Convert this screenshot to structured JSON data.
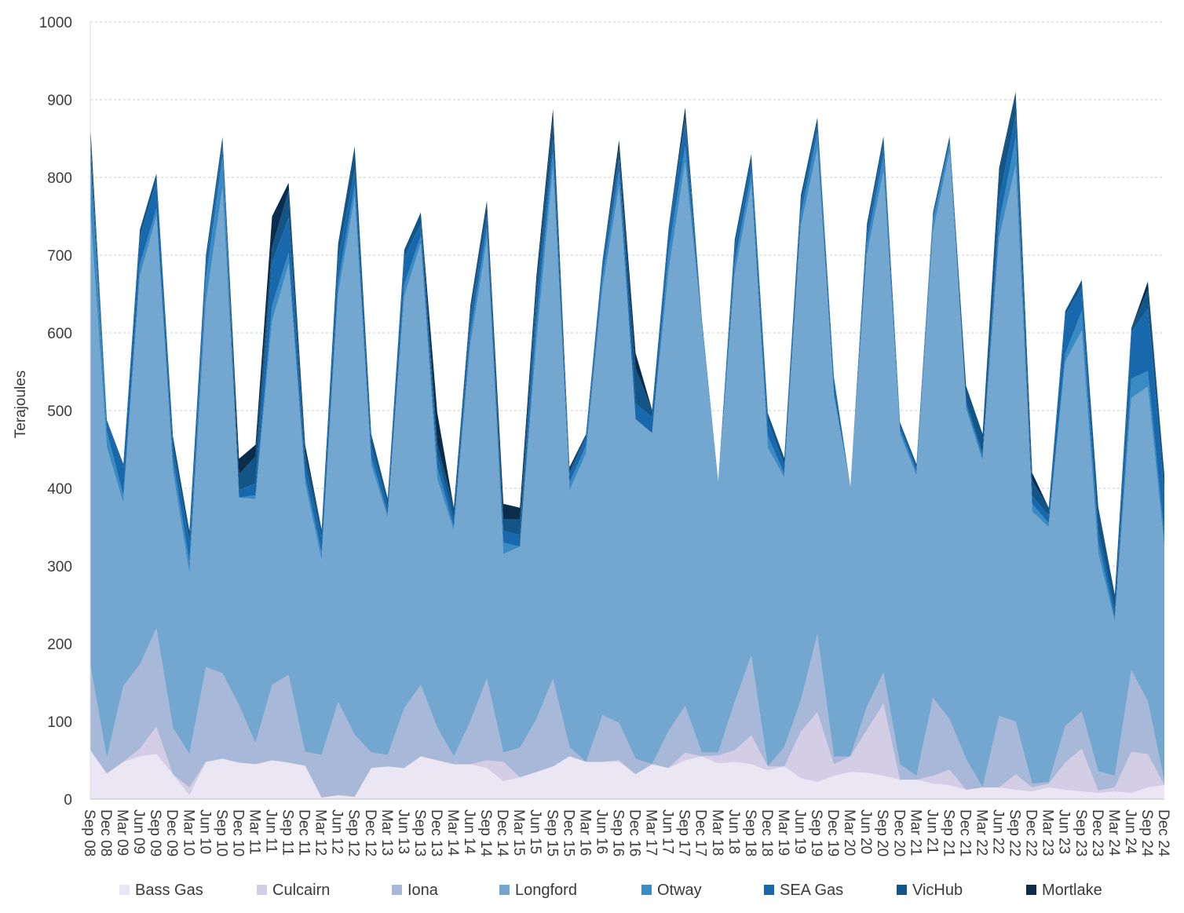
{
  "chart_data": {
    "type": "area",
    "stacked": true,
    "ylabel": "Terajoules",
    "ylim": [
      0,
      1000
    ],
    "yticks": [
      0,
      100,
      200,
      300,
      400,
      500,
      600,
      700,
      800,
      900,
      1000
    ],
    "grid": "horizontal-dashed",
    "legend_position": "bottom",
    "x_labels": [
      "Sep 08",
      "Dec 08",
      "Mar 09",
      "Jun 09",
      "Sep 09",
      "Dec 09",
      "Mar 10",
      "Jun 10",
      "Sep 10",
      "Dec 10",
      "Mar 11",
      "Jun 11",
      "Sep 11",
      "Dec 11",
      "Mar 12",
      "Jun 12",
      "Sep 12",
      "Dec 12",
      "Mar 13",
      "Jun 13",
      "Sep 13",
      "Dec 13",
      "Mar 14",
      "Jun 14",
      "Sep 14",
      "Dec 14",
      "Mar 15",
      "Jun 15",
      "Sep 15",
      "Dec 15",
      "Mar 16",
      "Jun 16",
      "Sep 16",
      "Dec 16",
      "Mar 17",
      "Jun 17",
      "Sep 17",
      "Dec 17",
      "Mar 18",
      "Jun 18",
      "Sep 18",
      "Dec 18",
      "Mar 19",
      "Jun 19",
      "Sep 19",
      "Dec 19",
      "Mar 20",
      "Jun 20",
      "Sep 20",
      "Dec 20",
      "Mar 21",
      "Jun 21",
      "Sep 21",
      "Dec 21",
      "Mar 22",
      "Jun 22",
      "Sep 22",
      "Dec 22",
      "Mar 23",
      "Jun 23",
      "Sep 23",
      "Dec 23",
      "Mar 24",
      "Jun 24",
      "Sep 24",
      "Dec 24"
    ],
    "series": [
      {
        "name": "Bass Gas",
        "color": "#ebe6f3",
        "values": [
          63,
          33,
          48,
          55,
          58,
          32,
          5,
          48,
          52,
          47,
          45,
          50,
          47,
          43,
          2,
          5,
          3,
          40,
          42,
          40,
          55,
          50,
          45,
          45,
          40,
          23,
          28,
          35,
          42,
          55,
          48,
          48,
          48,
          32,
          45,
          40,
          50,
          55,
          46,
          48,
          45,
          37,
          42,
          27,
          22,
          30,
          35,
          34,
          30,
          25,
          25,
          20,
          18,
          12,
          15,
          15,
          12,
          10,
          15,
          12,
          10,
          8,
          10,
          8,
          15,
          18
        ]
      },
      {
        "name": "Culcairn",
        "color": "#d4cde6",
        "values": [
          0,
          0,
          0,
          10,
          35,
          0,
          10,
          0,
          0,
          0,
          0,
          0,
          0,
          0,
          0,
          0,
          0,
          0,
          0,
          0,
          0,
          0,
          0,
          0,
          10,
          25,
          0,
          0,
          0,
          0,
          0,
          0,
          2,
          0,
          0,
          0,
          10,
          0,
          10,
          15,
          37,
          5,
          0,
          60,
          90,
          15,
          20,
          55,
          93,
          0,
          0,
          10,
          20,
          0,
          0,
          0,
          20,
          5,
          5,
          35,
          55,
          3,
          5,
          53,
          43,
          0
        ]
      },
      {
        "name": "Iona",
        "color": "#a8b8d8",
        "values": [
          110,
          20,
          98,
          108,
          127,
          60,
          43,
          122,
          110,
          74,
          27,
          97,
          113,
          18,
          55,
          120,
          80,
          20,
          15,
          77,
          92,
          42,
          10,
          55,
          105,
          12,
          38,
          68,
          113,
          12,
          0,
          60,
          48,
          20,
          0,
          48,
          60,
          5,
          4,
          62,
          103,
          0,
          25,
          40,
          100,
          10,
          0,
          30,
          40,
          20,
          5,
          100,
          65,
          40,
          0,
          92,
          68,
          5,
          2,
          47,
          48,
          25,
          15,
          105,
          68,
          5
        ]
      },
      {
        "name": "Longford",
        "color": "#73a7d0",
        "values": [
          585,
          400,
          235,
          500,
          530,
          330,
          232,
          470,
          625,
          267,
          314,
          468,
          528,
          345,
          250,
          525,
          692,
          370,
          305,
          530,
          568,
          320,
          290,
          485,
          565,
          255,
          259,
          485,
          658,
          330,
          397,
          550,
          690,
          437,
          426,
          592,
          700,
          550,
          343,
          550,
          605,
          410,
          347,
          610,
          625,
          463,
          347,
          581,
          645,
          425,
          386,
          600,
          730,
          450,
          420,
          615,
          715,
          350,
          328,
          469,
          490,
          280,
          198,
          350,
          405,
          300
        ]
      },
      {
        "name": "Otway",
        "color": "#3a8ac4",
        "values": [
          65,
          20,
          10,
          15,
          10,
          15,
          15,
          30,
          40,
          0,
          5,
          20,
          15,
          10,
          10,
          15,
          15,
          10,
          5,
          15,
          10,
          15,
          5,
          15,
          15,
          15,
          0,
          25,
          20,
          10,
          10,
          15,
          20,
          0,
          0,
          25,
          20,
          5,
          5,
          15,
          15,
          15,
          5,
          15,
          20,
          5,
          0,
          15,
          20,
          5,
          5,
          15,
          10,
          5,
          5,
          20,
          35,
          10,
          5,
          10,
          25,
          15,
          5,
          25,
          20,
          15
        ]
      },
      {
        "name": "SEA Gas",
        "color": "#1868ad",
        "values": [
          20,
          15,
          35,
          35,
          35,
          15,
          25,
          20,
          15,
          10,
          15,
          55,
          45,
          15,
          20,
          30,
          20,
          15,
          10,
          35,
          15,
          15,
          10,
          20,
          15,
          15,
          15,
          30,
          15,
          10,
          10,
          15,
          15,
          20,
          20,
          25,
          30,
          5,
          0,
          20,
          15,
          20,
          10,
          15,
          10,
          15,
          0,
          15,
          15,
          5,
          5,
          5,
          5,
          5,
          5,
          30,
          30,
          10,
          10,
          50,
          30,
          15,
          10,
          60,
          80,
          55
        ]
      },
      {
        "name": "VicHub",
        "color": "#135586",
        "values": [
          10,
          0,
          5,
          10,
          10,
          15,
          15,
          10,
          10,
          20,
          35,
          20,
          35,
          15,
          10,
          20,
          30,
          15,
          10,
          10,
          15,
          15,
          15,
          10,
          15,
          15,
          20,
          20,
          30,
          5,
          5,
          5,
          15,
          45,
          10,
          5,
          10,
          0,
          0,
          10,
          10,
          10,
          10,
          10,
          10,
          5,
          0,
          10,
          10,
          5,
          5,
          5,
          5,
          20,
          25,
          35,
          30,
          20,
          10,
          5,
          10,
          30,
          20,
          5,
          25,
          25
        ]
      },
      {
        "name": "Mortlake",
        "color": "#0b2d4b",
        "values": [
          15,
          0,
          0,
          0,
          0,
          0,
          0,
          0,
          0,
          20,
          15,
          40,
          10,
          10,
          0,
          0,
          0,
          0,
          0,
          0,
          0,
          40,
          0,
          5,
          5,
          20,
          15,
          10,
          10,
          5,
          0,
          0,
          10,
          20,
          0,
          0,
          10,
          0,
          0,
          0,
          0,
          0,
          0,
          0,
          0,
          0,
          0,
          0,
          0,
          0,
          0,
          0,
          0,
          0,
          0,
          5,
          0,
          10,
          0,
          0,
          0,
          0,
          0,
          0,
          10,
          0
        ]
      }
    ]
  }
}
